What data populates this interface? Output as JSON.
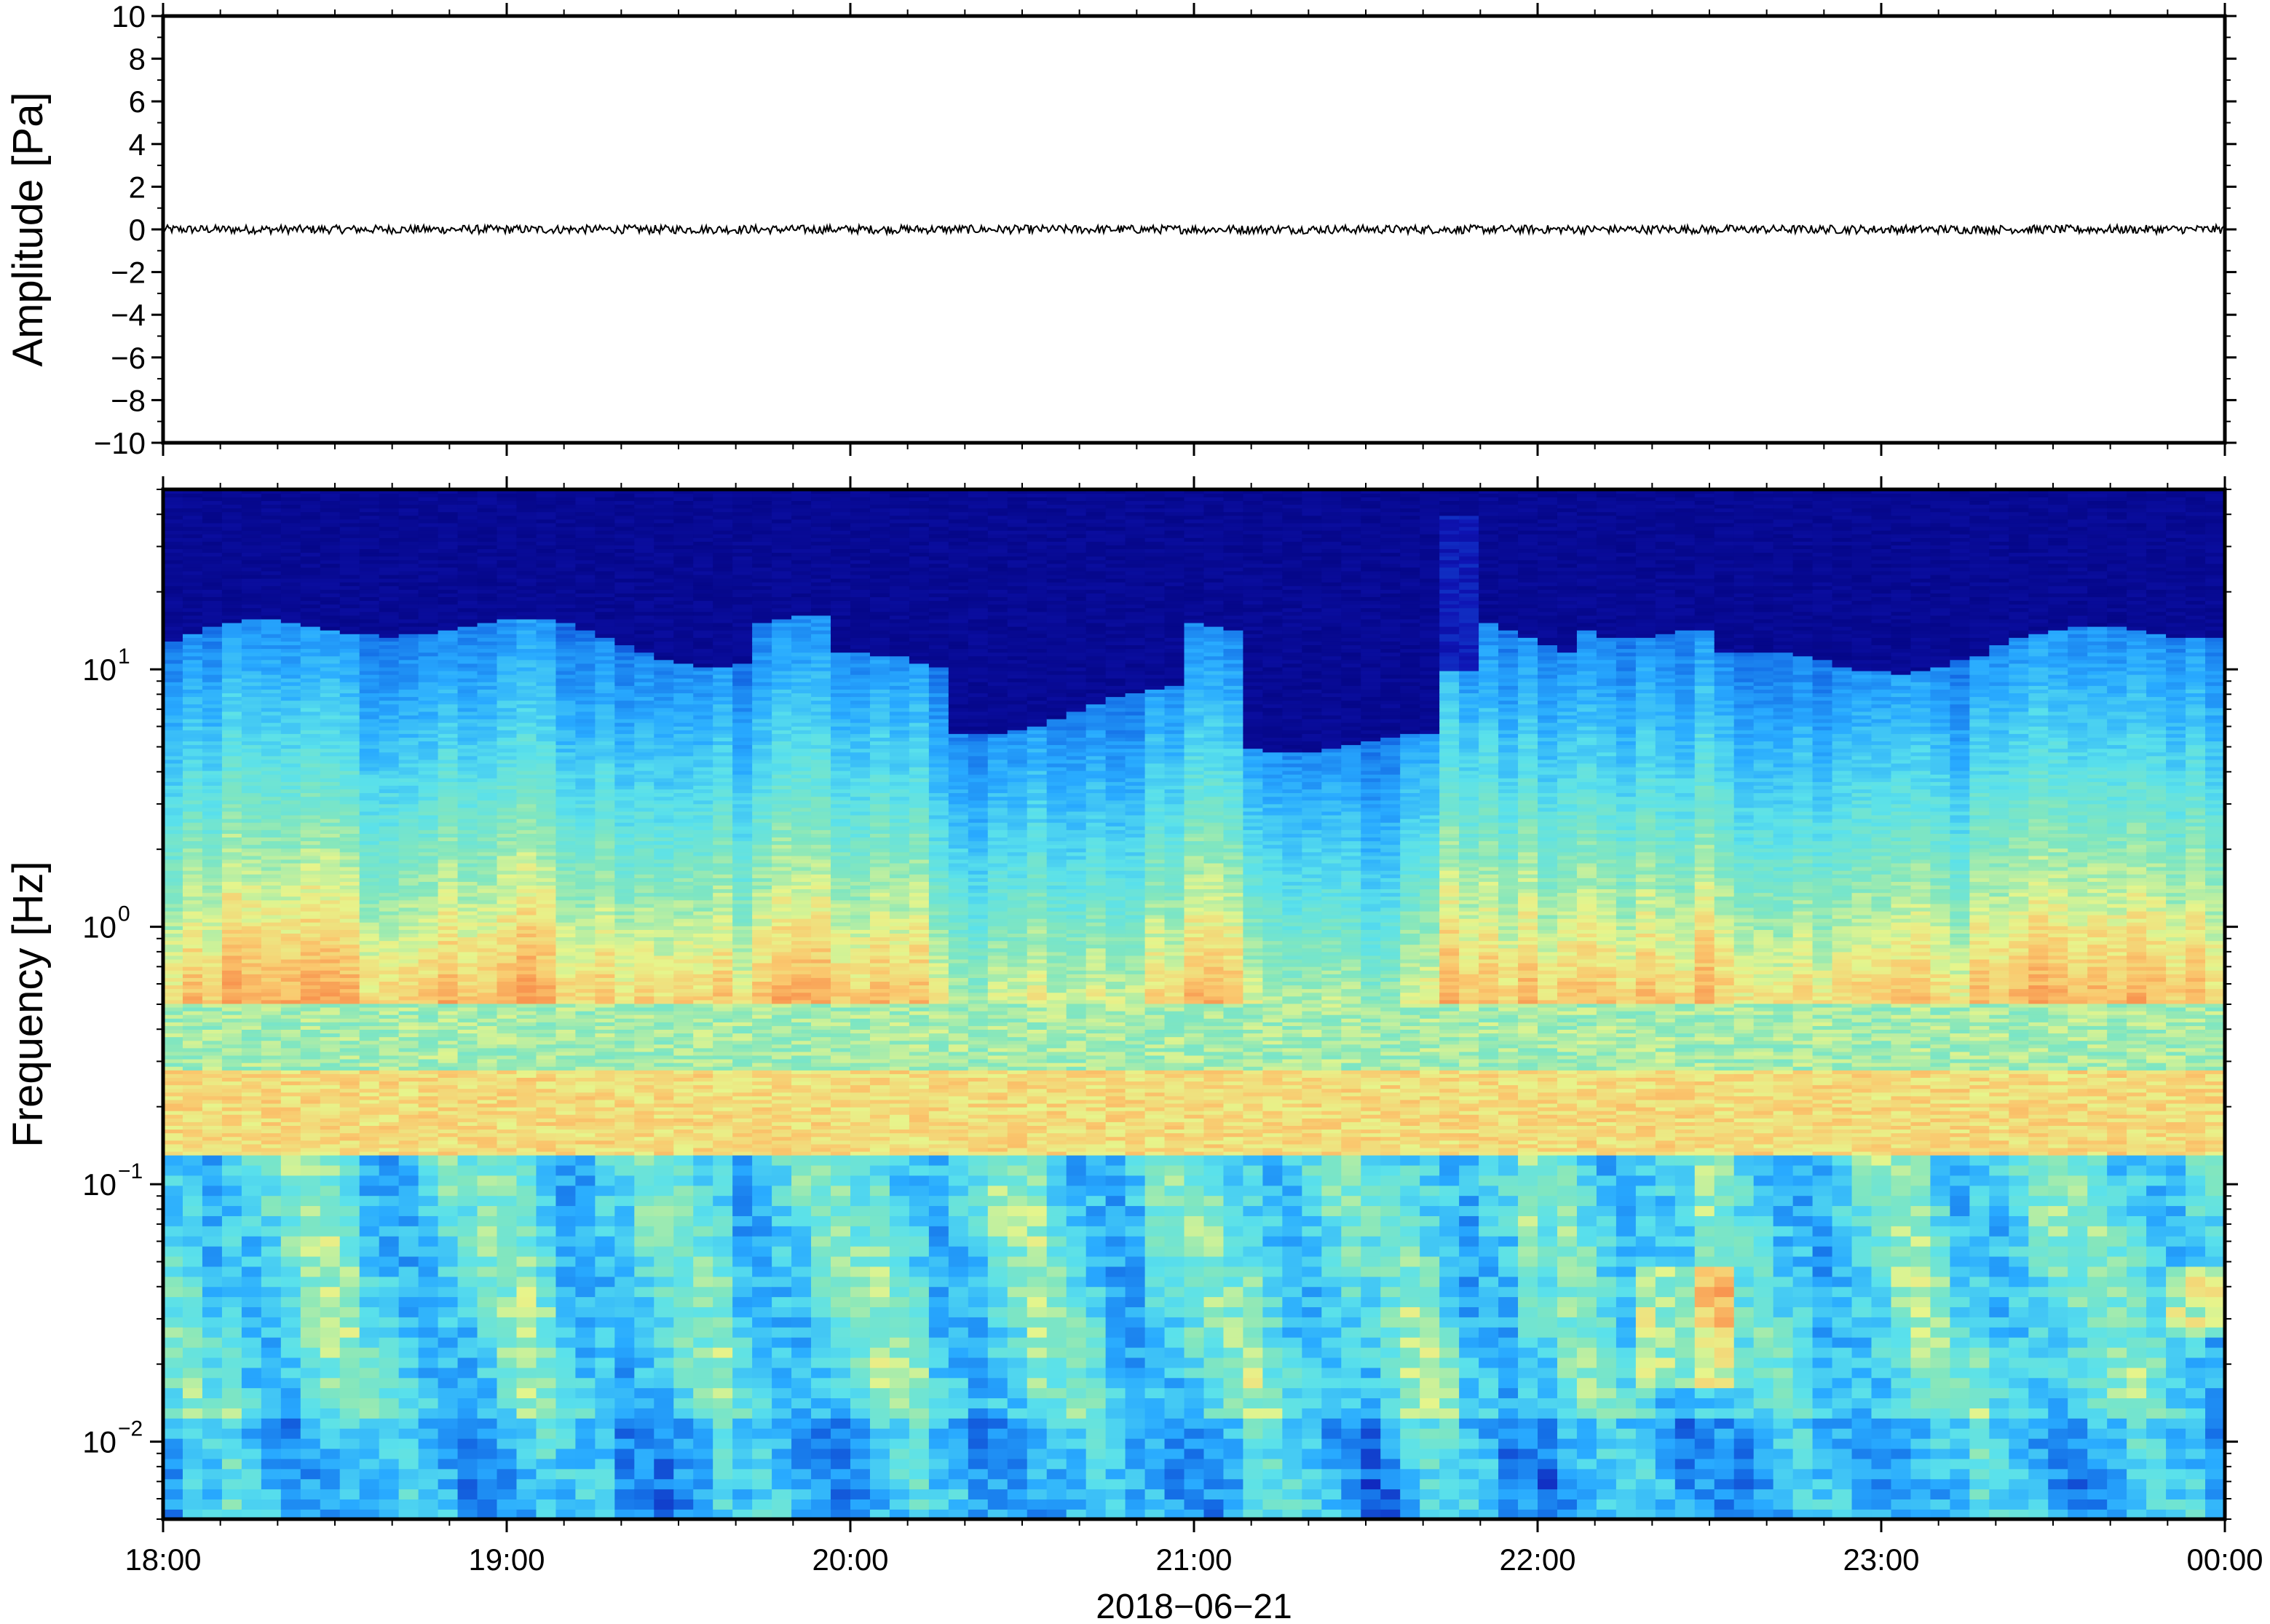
{
  "chart_data": [
    {
      "type": "line",
      "panel": "waveform",
      "ylabel": "Amplitude [Pa]",
      "ylim": [
        -10,
        10
      ],
      "yticks": [
        10,
        8,
        6,
        4,
        2,
        0,
        -2,
        -4,
        -6,
        -8,
        -10
      ],
      "ytick_labels": [
        "10",
        "8",
        "6",
        "4",
        "2",
        "0",
        "−2",
        "−4",
        "−6",
        "−8",
        "−10"
      ],
      "xlim": [
        "18:00",
        "00:00"
      ],
      "series": [
        {
          "values_summary": "near-zero pressure trace, amplitude ≈ ±0.2 Pa across the full interval",
          "mean": 0,
          "peak_abs": 0.2
        }
      ],
      "grid": false
    },
    {
      "type": "heatmap",
      "panel": "spectrogram",
      "ylabel": "Frequency [Hz]",
      "yscale": "log",
      "ylim": [
        0.005,
        50
      ],
      "yticks": [
        0.01,
        0.1,
        1,
        10
      ],
      "ytick_labels": [
        {
          "base": "10",
          "exp": "−2"
        },
        {
          "base": "10",
          "exp": "−1"
        },
        {
          "base": "10",
          "exp": "0"
        },
        {
          "base": "10",
          "exp": "1"
        }
      ],
      "xlabel": "2018−06−21",
      "xticks": [
        "18:00",
        "19:00",
        "20:00",
        "21:00",
        "22:00",
        "23:00",
        "00:00"
      ],
      "colormap": "jet-like",
      "colors": {
        "low": "#00007a",
        "mid_low": "#1e8cff",
        "mid": "#58e3e6",
        "mid_high": "#e8f58c",
        "high": "#f5a85a"
      },
      "features": [
        "persistent energy band (microbarom) near 0.15–0.25 Hz, orange",
        "energy at f > 10 Hz is very low (dark navy)",
        "quiet interval 21:10–21:40 with dark blue extending down to ~1 Hz",
        "broadband burst near 21:45 reaching above 30 Hz",
        "elevated low-frequency energy near 22:20–22:30 and at 23:55"
      ],
      "grid": false
    }
  ]
}
